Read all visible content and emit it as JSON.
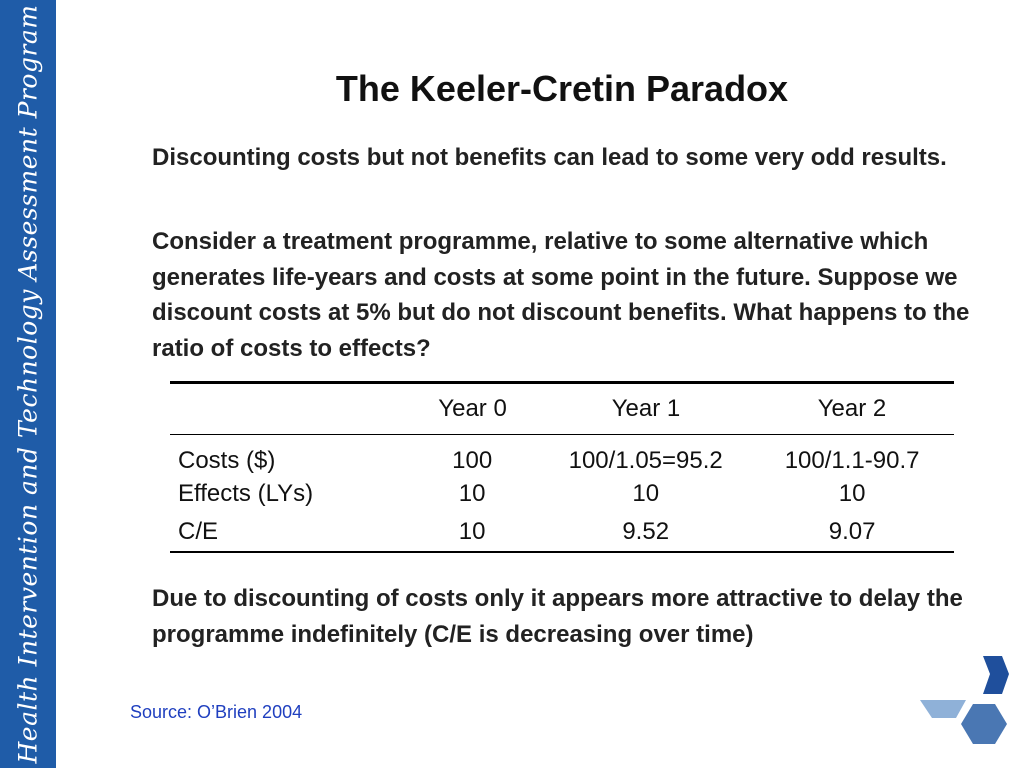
{
  "sidebar": {
    "text": "Health Intervention and Technology Assessment Program"
  },
  "slide": {
    "title": "The Keeler-Cretin Paradox",
    "para1": "Discounting costs but not benefits can lead to some very odd results.",
    "para2": "Consider a treatment programme, relative to some alternative which generates life-years and costs at some point in the future.  Suppose we discount costs at 5% but do not discount benefits.  What happens to the ratio of costs to effects?",
    "para3": "Due to discounting of costs only it appears more attractive to delay the programme indefinitely (C/E is decreasing over time)"
  },
  "table": {
    "headers": [
      "",
      "Year 0",
      "Year 1",
      "Year 2"
    ],
    "rows": [
      [
        "Costs ($)",
        "100",
        "100/1.05=95.2",
        "100/1.1-90.7"
      ],
      [
        "Effects (LYs)",
        "10",
        "10",
        "10"
      ],
      [
        "C/E",
        "10",
        "9.52",
        "9.07"
      ]
    ]
  },
  "footer": {
    "source": "Source: O’Brien 2004"
  },
  "colors": {
    "sidebar": "#1f5ca8",
    "logo_dark": "#1f4f9c",
    "logo_light": "#8fb1d8",
    "logo_mid": "#4a77b3"
  }
}
